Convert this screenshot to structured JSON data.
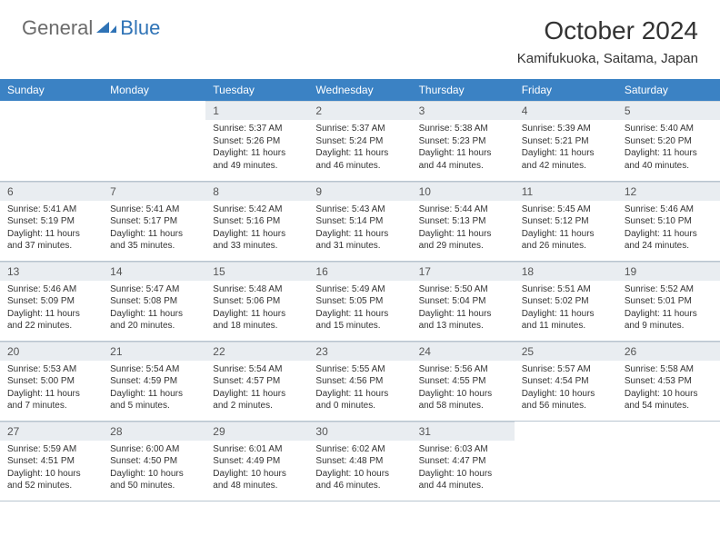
{
  "logo": {
    "text1": "General",
    "text2": "Blue"
  },
  "title": "October 2024",
  "location": "Kamifukuoka, Saitama, Japan",
  "headers": [
    "Sunday",
    "Monday",
    "Tuesday",
    "Wednesday",
    "Thursday",
    "Friday",
    "Saturday"
  ],
  "colors": {
    "header_bg": "#3b82c4",
    "header_text": "#ffffff",
    "daynum_bg": "#e9edf1",
    "border": "#b8c5d0",
    "text": "#333333",
    "logo_gray": "#6b6b6b",
    "logo_blue": "#2f73b6"
  },
  "first_weekday_index": 2,
  "days": [
    {
      "n": 1,
      "sr": "5:37 AM",
      "ss": "5:26 PM",
      "dl": "11 hours and 49 minutes."
    },
    {
      "n": 2,
      "sr": "5:37 AM",
      "ss": "5:24 PM",
      "dl": "11 hours and 46 minutes."
    },
    {
      "n": 3,
      "sr": "5:38 AM",
      "ss": "5:23 PM",
      "dl": "11 hours and 44 minutes."
    },
    {
      "n": 4,
      "sr": "5:39 AM",
      "ss": "5:21 PM",
      "dl": "11 hours and 42 minutes."
    },
    {
      "n": 5,
      "sr": "5:40 AM",
      "ss": "5:20 PM",
      "dl": "11 hours and 40 minutes."
    },
    {
      "n": 6,
      "sr": "5:41 AM",
      "ss": "5:19 PM",
      "dl": "11 hours and 37 minutes."
    },
    {
      "n": 7,
      "sr": "5:41 AM",
      "ss": "5:17 PM",
      "dl": "11 hours and 35 minutes."
    },
    {
      "n": 8,
      "sr": "5:42 AM",
      "ss": "5:16 PM",
      "dl": "11 hours and 33 minutes."
    },
    {
      "n": 9,
      "sr": "5:43 AM",
      "ss": "5:14 PM",
      "dl": "11 hours and 31 minutes."
    },
    {
      "n": 10,
      "sr": "5:44 AM",
      "ss": "5:13 PM",
      "dl": "11 hours and 29 minutes."
    },
    {
      "n": 11,
      "sr": "5:45 AM",
      "ss": "5:12 PM",
      "dl": "11 hours and 26 minutes."
    },
    {
      "n": 12,
      "sr": "5:46 AM",
      "ss": "5:10 PM",
      "dl": "11 hours and 24 minutes."
    },
    {
      "n": 13,
      "sr": "5:46 AM",
      "ss": "5:09 PM",
      "dl": "11 hours and 22 minutes."
    },
    {
      "n": 14,
      "sr": "5:47 AM",
      "ss": "5:08 PM",
      "dl": "11 hours and 20 minutes."
    },
    {
      "n": 15,
      "sr": "5:48 AM",
      "ss": "5:06 PM",
      "dl": "11 hours and 18 minutes."
    },
    {
      "n": 16,
      "sr": "5:49 AM",
      "ss": "5:05 PM",
      "dl": "11 hours and 15 minutes."
    },
    {
      "n": 17,
      "sr": "5:50 AM",
      "ss": "5:04 PM",
      "dl": "11 hours and 13 minutes."
    },
    {
      "n": 18,
      "sr": "5:51 AM",
      "ss": "5:02 PM",
      "dl": "11 hours and 11 minutes."
    },
    {
      "n": 19,
      "sr": "5:52 AM",
      "ss": "5:01 PM",
      "dl": "11 hours and 9 minutes."
    },
    {
      "n": 20,
      "sr": "5:53 AM",
      "ss": "5:00 PM",
      "dl": "11 hours and 7 minutes."
    },
    {
      "n": 21,
      "sr": "5:54 AM",
      "ss": "4:59 PM",
      "dl": "11 hours and 5 minutes."
    },
    {
      "n": 22,
      "sr": "5:54 AM",
      "ss": "4:57 PM",
      "dl": "11 hours and 2 minutes."
    },
    {
      "n": 23,
      "sr": "5:55 AM",
      "ss": "4:56 PM",
      "dl": "11 hours and 0 minutes."
    },
    {
      "n": 24,
      "sr": "5:56 AM",
      "ss": "4:55 PM",
      "dl": "10 hours and 58 minutes."
    },
    {
      "n": 25,
      "sr": "5:57 AM",
      "ss": "4:54 PM",
      "dl": "10 hours and 56 minutes."
    },
    {
      "n": 26,
      "sr": "5:58 AM",
      "ss": "4:53 PM",
      "dl": "10 hours and 54 minutes."
    },
    {
      "n": 27,
      "sr": "5:59 AM",
      "ss": "4:51 PM",
      "dl": "10 hours and 52 minutes."
    },
    {
      "n": 28,
      "sr": "6:00 AM",
      "ss": "4:50 PM",
      "dl": "10 hours and 50 minutes."
    },
    {
      "n": 29,
      "sr": "6:01 AM",
      "ss": "4:49 PM",
      "dl": "10 hours and 48 minutes."
    },
    {
      "n": 30,
      "sr": "6:02 AM",
      "ss": "4:48 PM",
      "dl": "10 hours and 46 minutes."
    },
    {
      "n": 31,
      "sr": "6:03 AM",
      "ss": "4:47 PM",
      "dl": "10 hours and 44 minutes."
    }
  ],
  "labels": {
    "sunrise": "Sunrise:",
    "sunset": "Sunset:",
    "daylight": "Daylight:"
  }
}
